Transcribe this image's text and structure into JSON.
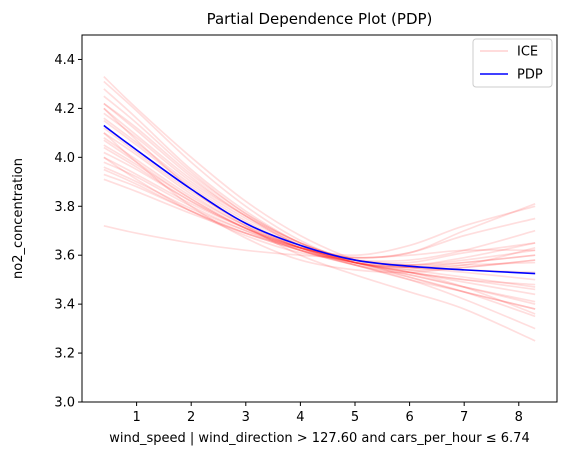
{
  "chart_data": {
    "type": "line",
    "title": "Partial Dependence Plot (PDP)",
    "xlabel": "wind_speed | wind_direction > 127.60 and cars_per_hour ≤ 6.74",
    "ylabel": "no2_concentration",
    "xlim": [
      0.0,
      8.7
    ],
    "ylim": [
      3.0,
      4.5
    ],
    "xticks": [
      1,
      2,
      3,
      4,
      5,
      6,
      7,
      8
    ],
    "yticks": [
      3.0,
      3.2,
      3.4,
      3.6,
      3.8,
      4.0,
      4.2,
      4.4
    ],
    "xtick_labels": [
      "1",
      "2",
      "3",
      "4",
      "5",
      "6",
      "7",
      "8"
    ],
    "ytick_labels": [
      "3.0",
      "3.2",
      "3.4",
      "3.6",
      "3.8",
      "4.0",
      "4.2",
      "4.4"
    ],
    "grid": false,
    "legend": {
      "position": "top-right",
      "entries": [
        {
          "label": "ICE",
          "color": "#ff9999"
        },
        {
          "label": "PDP",
          "color": "#0000ff"
        }
      ]
    },
    "x": [
      0.4,
      1.0,
      2.0,
      3.0,
      4.0,
      5.0,
      6.0,
      7.0,
      8.3
    ],
    "pdp": {
      "name": "PDP",
      "color": "#0000ff",
      "values": [
        4.13,
        4.03,
        3.87,
        3.73,
        3.64,
        3.58,
        3.555,
        3.54,
        3.525
      ]
    },
    "ice_color": "#ff0000",
    "ice": [
      [
        4.33,
        4.2,
        4.0,
        3.82,
        3.68,
        3.58,
        3.51,
        3.45,
        3.38
      ],
      [
        4.31,
        4.19,
        3.98,
        3.8,
        3.66,
        3.57,
        3.53,
        3.5,
        3.48
      ],
      [
        4.28,
        4.16,
        3.95,
        3.78,
        3.65,
        3.57,
        3.52,
        3.47,
        3.41
      ],
      [
        4.25,
        4.14,
        3.94,
        3.77,
        3.65,
        3.58,
        3.56,
        3.57,
        3.6
      ],
      [
        4.22,
        4.11,
        3.92,
        3.76,
        3.64,
        3.57,
        3.54,
        3.55,
        3.58
      ],
      [
        4.2,
        4.09,
        3.91,
        3.76,
        3.64,
        3.57,
        3.53,
        3.5,
        3.46
      ],
      [
        4.18,
        4.08,
        3.9,
        3.76,
        3.65,
        3.58,
        3.56,
        3.59,
        3.65
      ],
      [
        4.16,
        4.06,
        3.89,
        3.75,
        3.64,
        3.57,
        3.55,
        3.57,
        3.6
      ],
      [
        4.15,
        4.05,
        3.88,
        3.74,
        3.63,
        3.56,
        3.5,
        3.45,
        3.38
      ],
      [
        4.13,
        4.03,
        3.87,
        3.73,
        3.63,
        3.57,
        3.55,
        3.56,
        3.57
      ],
      [
        4.12,
        4.02,
        3.86,
        3.73,
        3.63,
        3.57,
        3.55,
        3.54,
        3.53
      ],
      [
        4.1,
        4.01,
        3.85,
        3.72,
        3.63,
        3.58,
        3.57,
        3.61,
        3.65
      ],
      [
        4.08,
        3.99,
        3.84,
        3.72,
        3.63,
        3.57,
        3.53,
        3.49,
        3.44
      ],
      [
        4.07,
        3.98,
        3.83,
        3.71,
        3.62,
        3.56,
        3.52,
        3.47,
        3.4
      ],
      [
        4.05,
        3.97,
        3.83,
        3.71,
        3.62,
        3.56,
        3.51,
        3.45,
        3.35
      ],
      [
        4.04,
        3.96,
        3.82,
        3.71,
        3.63,
        3.58,
        3.56,
        3.58,
        3.62
      ],
      [
        4.02,
        3.95,
        3.82,
        3.71,
        3.63,
        3.59,
        3.61,
        3.68,
        3.75
      ],
      [
        4.0,
        3.93,
        3.81,
        3.71,
        3.63,
        3.58,
        3.55,
        3.53,
        3.5
      ],
      [
        3.98,
        3.92,
        3.8,
        3.7,
        3.62,
        3.56,
        3.5,
        3.42,
        3.3
      ],
      [
        3.96,
        3.9,
        3.79,
        3.7,
        3.63,
        3.59,
        3.61,
        3.7,
        3.81
      ],
      [
        3.95,
        3.89,
        3.78,
        3.69,
        3.62,
        3.57,
        3.54,
        3.51,
        3.47
      ],
      [
        3.93,
        3.88,
        3.78,
        3.69,
        3.62,
        3.57,
        3.53,
        3.47,
        3.36
      ],
      [
        3.91,
        3.86,
        3.77,
        3.69,
        3.63,
        3.6,
        3.64,
        3.72,
        3.8
      ],
      [
        4.2,
        4.07,
        3.87,
        3.72,
        3.6,
        3.52,
        3.45,
        3.38,
        3.25
      ],
      [
        4.1,
        3.98,
        3.8,
        3.67,
        3.58,
        3.54,
        3.53,
        3.55,
        3.58
      ],
      [
        3.72,
        3.69,
        3.65,
        3.62,
        3.6,
        3.59,
        3.6,
        3.62,
        3.62
      ],
      [
        4.22,
        4.12,
        3.93,
        3.77,
        3.65,
        3.58,
        3.55,
        3.56,
        3.63
      ],
      [
        4.0,
        3.91,
        3.78,
        3.68,
        3.61,
        3.58,
        3.58,
        3.62,
        3.7
      ]
    ]
  }
}
